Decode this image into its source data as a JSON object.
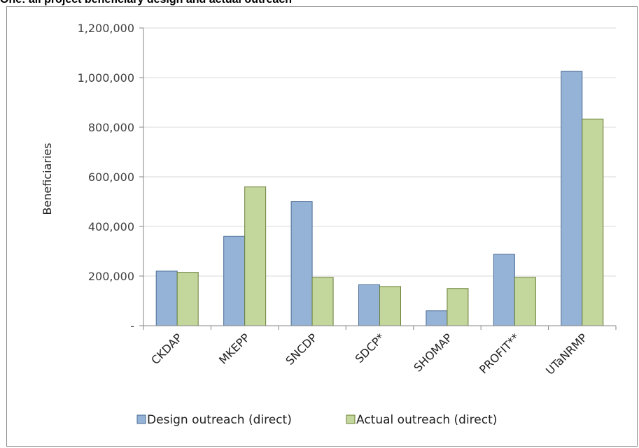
{
  "title": "One: all project beneficiary design and actual outreach",
  "chart_data": {
    "type": "bar",
    "title": "",
    "xlabel": "",
    "ylabel": "Beneficiaries",
    "ylim": [
      0,
      1200000
    ],
    "yticks": [
      0,
      200000,
      400000,
      600000,
      800000,
      1000000,
      1200000
    ],
    "ytick_labels": [
      "-",
      "200,000",
      "400,000",
      "600,000",
      "800,000",
      "1,000,000",
      "1,200,000"
    ],
    "categories": [
      "CKDAP",
      "MKEPP",
      "SNCDP",
      "SDCP*",
      "SHOMAP",
      "PROFIT**",
      "UTaNRMP"
    ],
    "series": [
      {
        "name": "Design outreach (direct)",
        "color": "#95b3d7",
        "stroke": "#4a6b94",
        "values": [
          220000,
          360000,
          500000,
          165000,
          60000,
          288000,
          1025000
        ]
      },
      {
        "name": "Actual outreach (direct)",
        "color": "#c3d69b",
        "stroke": "#6b7f3a",
        "values": [
          215000,
          560000,
          195000,
          158000,
          150000,
          195000,
          833000
        ]
      }
    ],
    "grid": true,
    "legend_position": "bottom"
  }
}
